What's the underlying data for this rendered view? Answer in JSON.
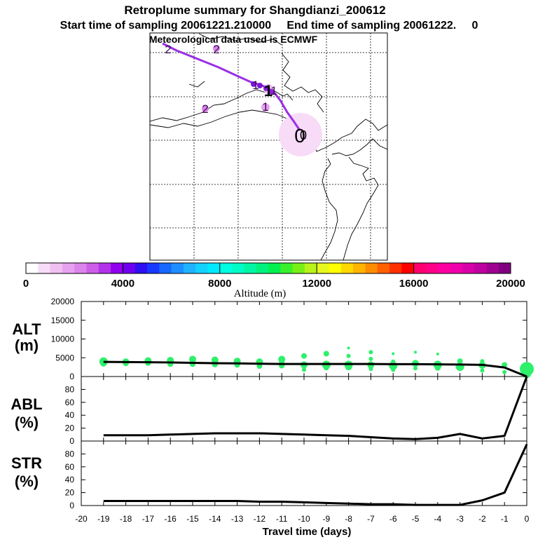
{
  "header": {
    "title": "Retroplume summary for Shangdianzi_200612",
    "sampling_line": "Start time of sampling 20061221.210000     End time of sampling 20061222.     0",
    "met_line": "Meteorological data used is ECMWF"
  },
  "map": {
    "day_labels": [
      "2",
      "2",
      "2",
      "1",
      "1",
      "1",
      "1",
      "0",
      "0"
    ]
  },
  "colorbar": {
    "tick_labels": [
      "0",
      "4000",
      "8000",
      "12000",
      "16000",
      "20000"
    ],
    "label": "Altitude (m)",
    "colors": [
      "#ffffff",
      "#f7dbf7",
      "#f0c0f0",
      "#e6a2ef",
      "#db84ea",
      "#cc5ee8",
      "#b232ea",
      "#9100ef",
      "#6f00ef",
      "#2e10f0",
      "#1838ff",
      "#1668ff",
      "#1d8eff",
      "#1fb2ff",
      "#14d2ff",
      "#00eaff",
      "#00ffe2",
      "#00fbc6",
      "#00f6a4",
      "#00f27c",
      "#00f050",
      "#3af02c",
      "#78f016",
      "#b8f21a",
      "#e6f81c",
      "#ffff00",
      "#ffd800",
      "#ffb400",
      "#ff8c00",
      "#ff6000",
      "#ff3000",
      "#ff0000",
      "#ff0070",
      "#ff0088",
      "#ff00a0",
      "#f000aa",
      "#d800a8",
      "#c000a0",
      "#a00090",
      "#800080"
    ]
  },
  "chart_data": [
    {
      "type": "line",
      "panel": "ALT",
      "ylabel": [
        "ALT",
        "(m)"
      ],
      "ylim": [
        0,
        20000
      ],
      "yticks": [
        0,
        5000,
        10000,
        15000,
        20000
      ],
      "ytick_labels": [
        "0",
        "5000",
        "10000",
        "15000",
        "20000"
      ],
      "x": [
        -19,
        -18,
        -17,
        -16,
        -15,
        -14,
        -13,
        -12,
        -11,
        -10,
        -9,
        -8,
        -7,
        -6,
        -5,
        -4,
        -3,
        -2,
        -1,
        0
      ],
      "series": [
        {
          "name": "mean altitude",
          "values": [
            3900,
            3850,
            3800,
            3750,
            3650,
            3550,
            3500,
            3400,
            3350,
            3350,
            3350,
            3350,
            3350,
            3300,
            3300,
            3250,
            3200,
            3100,
            2400,
            0
          ]
        }
      ],
      "scatter": {
        "name": "altitude distribution",
        "color": "#2ef06a",
        "points": [
          [
            -19,
            4000,
            6
          ],
          [
            -19,
            3600,
            5
          ],
          [
            -18,
            3900,
            5
          ],
          [
            -18,
            3500,
            4
          ],
          [
            -17,
            4200,
            5
          ],
          [
            -17,
            3600,
            4
          ],
          [
            -16,
            4300,
            5
          ],
          [
            -16,
            3300,
            4
          ],
          [
            -15,
            4600,
            5
          ],
          [
            -15,
            3300,
            4
          ],
          [
            -14,
            4400,
            5
          ],
          [
            -14,
            3200,
            4
          ],
          [
            -13,
            4100,
            5
          ],
          [
            -13,
            3100,
            4
          ],
          [
            -12,
            3900,
            5
          ],
          [
            -12,
            2800,
            4
          ],
          [
            -11,
            4600,
            5
          ],
          [
            -11,
            3600,
            4
          ],
          [
            -11,
            2900,
            4
          ],
          [
            -10,
            5500,
            4
          ],
          [
            -10,
            3100,
            5
          ],
          [
            -10,
            1800,
            3
          ],
          [
            -9,
            6100,
            4
          ],
          [
            -9,
            3100,
            6
          ],
          [
            -9,
            2400,
            4
          ],
          [
            -8,
            7600,
            2
          ],
          [
            -8,
            5500,
            3
          ],
          [
            -8,
            3100,
            6
          ],
          [
            -8,
            2600,
            5
          ],
          [
            -7,
            6500,
            3
          ],
          [
            -7,
            4700,
            3
          ],
          [
            -7,
            3100,
            5
          ],
          [
            -7,
            2000,
            3
          ],
          [
            -6,
            6100,
            2
          ],
          [
            -6,
            4000,
            3
          ],
          [
            -6,
            2900,
            6
          ],
          [
            -6,
            1800,
            3
          ],
          [
            -5,
            6500,
            2
          ],
          [
            -5,
            3500,
            5
          ],
          [
            -5,
            2200,
            3
          ],
          [
            -4,
            6000,
            2
          ],
          [
            -4,
            3100,
            6
          ],
          [
            -4,
            2300,
            4
          ],
          [
            -3,
            4100,
            4
          ],
          [
            -3,
            2600,
            6
          ],
          [
            -2,
            4100,
            3
          ],
          [
            -2,
            3000,
            5
          ],
          [
            -2,
            1600,
            3
          ],
          [
            -1,
            3100,
            4
          ],
          [
            -1,
            1200,
            3
          ],
          [
            0,
            2000,
            10
          ],
          [
            0,
            700,
            6
          ]
        ]
      }
    },
    {
      "type": "line",
      "panel": "ABL",
      "ylabel": [
        "ABL",
        "(%)"
      ],
      "ylim": [
        0,
        100
      ],
      "yticks": [
        0,
        20,
        40,
        60,
        80
      ],
      "ytick_labels": [
        "0",
        "20",
        "40",
        "60",
        "80"
      ],
      "x": [
        -19,
        -18,
        -17,
        -16,
        -15,
        -14,
        -13,
        -12,
        -11,
        -10,
        -9,
        -8,
        -7,
        -6,
        -5,
        -4,
        -3,
        -2,
        -1,
        0
      ],
      "series": [
        {
          "name": "fraction in ABL",
          "values": [
            9,
            9,
            9,
            10,
            11,
            12,
            12,
            12,
            11,
            10,
            9,
            8,
            6,
            4,
            3,
            5,
            11,
            4,
            8,
            100
          ]
        }
      ]
    },
    {
      "type": "line",
      "panel": "STR",
      "ylabel": [
        "STR",
        "(%)"
      ],
      "ylim": [
        0,
        100
      ],
      "yticks": [
        0,
        20,
        40,
        60,
        80
      ],
      "ytick_labels": [
        "0",
        "20",
        "40",
        "60",
        "80"
      ],
      "xlabel": "Travel time (days)",
      "xlim": [
        -20,
        0
      ],
      "xticks": [
        -20,
        -19,
        -18,
        -17,
        -16,
        -15,
        -14,
        -13,
        -12,
        -11,
        -10,
        -9,
        -8,
        -7,
        -6,
        -5,
        -4,
        -3,
        -2,
        -1,
        0
      ],
      "xtick_labels": [
        "-20",
        "-19",
        "-18",
        "-17",
        "-16",
        "-15",
        "-14",
        "-13",
        "-12",
        "-11",
        "-10",
        "-9",
        "-8",
        "-7",
        "-6",
        "-5",
        "-4",
        "-3",
        "-2",
        "-1",
        "0"
      ],
      "x": [
        -19,
        -18,
        -17,
        -16,
        -15,
        -14,
        -13,
        -12,
        -11,
        -10,
        -9,
        -8,
        -7,
        -6,
        -5,
        -4,
        -3,
        -2,
        -1,
        0
      ],
      "series": [
        {
          "name": "fraction in stratosphere",
          "values": [
            7,
            7,
            7,
            7,
            7,
            7,
            7,
            6,
            6,
            5,
            4,
            3,
            2,
            2,
            1,
            1,
            1,
            8,
            20,
            95
          ]
        }
      ]
    }
  ]
}
